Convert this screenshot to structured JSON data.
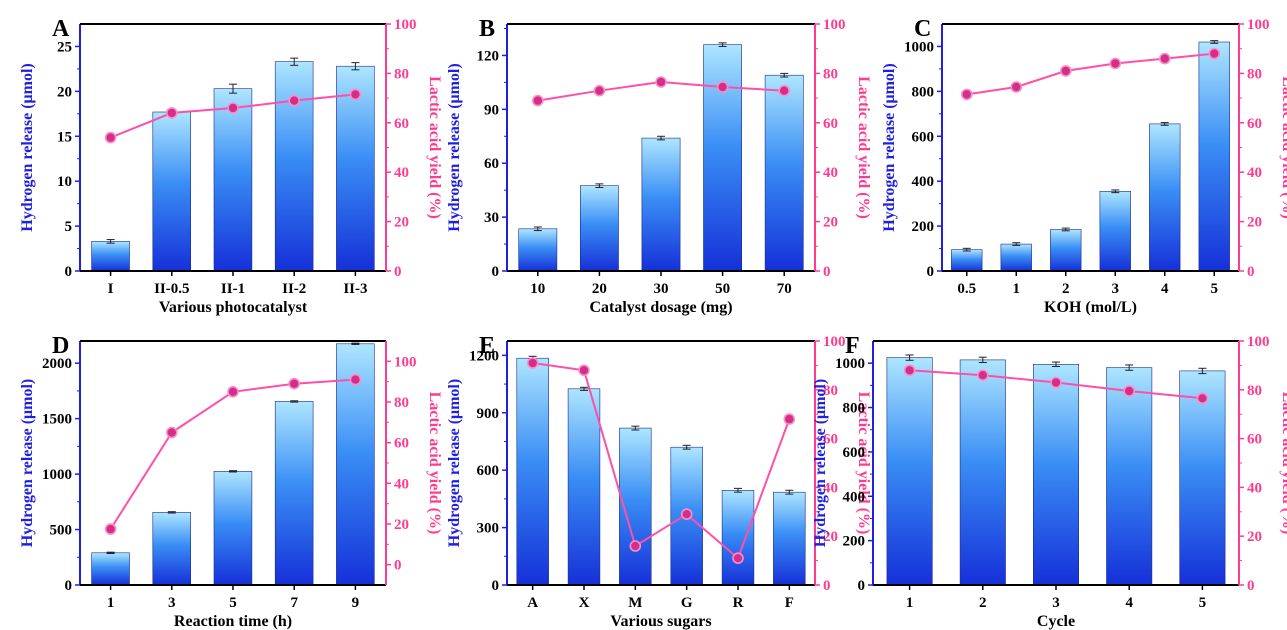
{
  "colors": {
    "bar_top": "#aee6ff",
    "bar_mid": "#3a8ef5",
    "bar_bottom": "#1530d8",
    "left_axis": "#1f1fe0",
    "right_axis": "#ff3b8f",
    "line": "#ff4fa6",
    "marker_fill": "#d0308a",
    "marker_ring": "#ff8cc6"
  },
  "chart_data": [
    {
      "panel": "A",
      "type": "bar+line",
      "categories": [
        "I",
        "II-0.5",
        "II-1",
        "II-2",
        "II-3"
      ],
      "xlabel": "Various photocatalyst",
      "ylabel": "Hydrogen release (μmol)",
      "ylabel2": "Lactic acid yield (%)",
      "ylim": [
        0,
        27.5
      ],
      "yticks": [
        0,
        5,
        10,
        15,
        20,
        25
      ],
      "y2lim": [
        0,
        100
      ],
      "y2ticks": [
        0,
        20,
        40,
        60,
        80,
        100
      ],
      "bars": [
        3.3,
        17.7,
        20.3,
        23.3,
        22.8
      ],
      "errors": [
        0.2,
        0.2,
        0.5,
        0.4,
        0.4
      ],
      "line": [
        54,
        64,
        66,
        69,
        71.5
      ]
    },
    {
      "panel": "B",
      "type": "bar+line",
      "categories": [
        "10",
        "20",
        "30",
        "50",
        "70"
      ],
      "xlabel": "Catalyst dosage (mg)",
      "ylabel": "Hydrogen release (μmol)",
      "ylabel2": "Lactic acid yield (%)",
      "ylim": [
        0,
        137.5
      ],
      "yticks": [
        0,
        30,
        60,
        90,
        120
      ],
      "y2lim": [
        0,
        100
      ],
      "y2ticks": [
        0,
        20,
        40,
        60,
        80,
        100
      ],
      "bars": [
        23.5,
        47.5,
        74,
        126,
        109
      ],
      "errors": [
        1,
        1,
        1,
        1,
        1
      ],
      "line": [
        69,
        73,
        76.5,
        74.5,
        73
      ]
    },
    {
      "panel": "C",
      "type": "bar+line",
      "categories": [
        "0.5",
        "1",
        "2",
        "3",
        "4",
        "5"
      ],
      "xlabel": "KOH (mol/L)",
      "ylabel": "Hydrogen release (μmol)",
      "ylabel2": "Lactic acid yield (%)",
      "ylim": [
        0,
        1100
      ],
      "yticks": [
        0,
        200,
        400,
        600,
        800,
        1000
      ],
      "y2lim": [
        0,
        100
      ],
      "y2ticks": [
        0,
        20,
        40,
        60,
        80,
        100
      ],
      "bars": [
        95,
        120,
        185,
        355,
        655,
        1020
      ],
      "errors": [
        6,
        6,
        6,
        6,
        6,
        6
      ],
      "line": [
        71.5,
        74.5,
        81,
        84,
        86,
        88
      ]
    },
    {
      "panel": "D",
      "type": "bar+line",
      "categories": [
        "1",
        "3",
        "5",
        "7",
        "9"
      ],
      "xlabel": "Reaction time (h)",
      "ylabel": "Hydrogen release (μmol)",
      "ylabel2": "Lactic acid yield (%)",
      "ylim": [
        0,
        2200
      ],
      "yticks": [
        0,
        500,
        1000,
        1500,
        2000
      ],
      "y2lim": [
        -10,
        110
      ],
      "y2ticks": [
        0,
        20,
        40,
        60,
        80,
        100
      ],
      "bars": [
        290,
        655,
        1025,
        1655,
        2175
      ],
      "errors": [
        6,
        6,
        6,
        6,
        6
      ],
      "line": [
        17.5,
        65,
        85,
        89,
        91
      ]
    },
    {
      "panel": "E",
      "type": "bar+line",
      "categories": [
        "A",
        "X",
        "M",
        "G",
        "R",
        "F"
      ],
      "xlabel": "Various sugars",
      "ylabel": "Hydrogen release (μmol)",
      "ylabel2": "Lactic acid yield (%)",
      "ylim": [
        0,
        1275
      ],
      "yticks": [
        0,
        300,
        600,
        900,
        1200
      ],
      "y2lim": [
        0,
        100
      ],
      "y2ticks": [
        0,
        20,
        40,
        60,
        80,
        100
      ],
      "bars": [
        1185,
        1025,
        820,
        720,
        495,
        485
      ],
      "errors": [
        10,
        8,
        10,
        10,
        10,
        10
      ],
      "line": [
        91,
        88,
        16,
        29,
        11,
        68
      ]
    },
    {
      "panel": "F",
      "type": "bar+line",
      "categories": [
        "1",
        "2",
        "3",
        "4",
        "5"
      ],
      "xlabel": "Cycle",
      "ylabel": "Hydrogen release (μmol)",
      "ylabel2": "Lactic acid yield (%)",
      "ylim": [
        0,
        1100
      ],
      "yticks": [
        0,
        200,
        400,
        600,
        800,
        1000
      ],
      "y2lim": [
        0,
        100
      ],
      "y2ticks": [
        0,
        20,
        40,
        60,
        80,
        100
      ],
      "bars": [
        1025,
        1015,
        995,
        980,
        965
      ],
      "errors": [
        12,
        12,
        10,
        12,
        12
      ],
      "line": [
        88,
        86,
        83,
        79.5,
        76.5
      ]
    }
  ]
}
